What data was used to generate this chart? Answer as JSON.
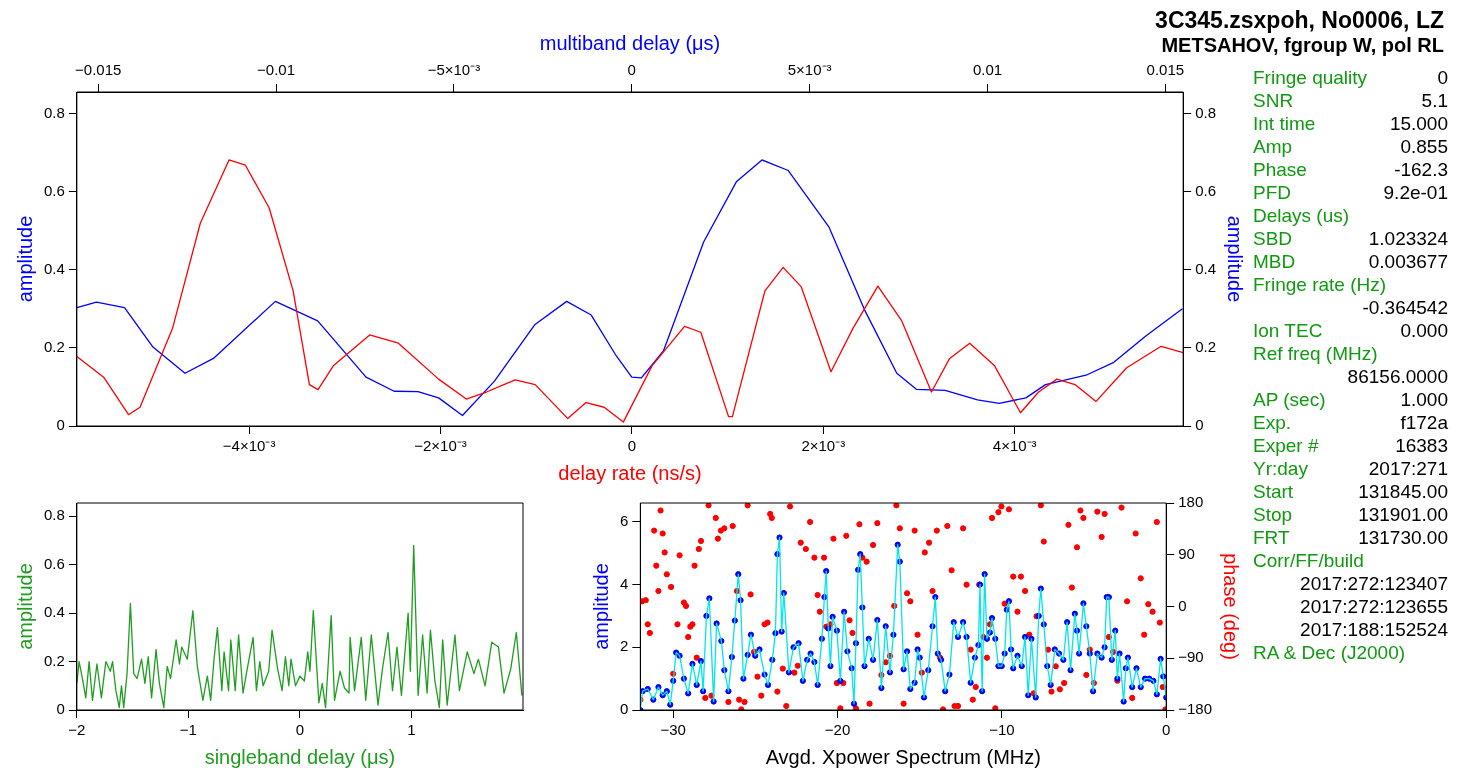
{
  "chart_data": [
    {
      "type": "line",
      "title": "3C345.zsxpoh, No0006, LZ",
      "subtitle": "METSAHOV, fgroup W, pol RL",
      "xlabel": "delay rate (ns/s)",
      "x2label": "multiband delay (μs)",
      "ylabel": "amplitude",
      "y2label": "amplitude",
      "marker": "none",
      "xlim": [
        -0.0058,
        0.00576
      ],
      "xticks": [
        {
          "value": -0.004,
          "label": "−4×10⁻³"
        },
        {
          "value": -0.002,
          "label": "−2×10⁻³"
        },
        0,
        {
          "value": 0.002,
          "label": "2×10⁻³"
        },
        {
          "value": 0.004,
          "label": "4×10⁻³"
        }
      ],
      "x2lim": [
        -0.0156,
        0.0155
      ],
      "x2ticks": [
        -0.015,
        -0.01,
        {
          "value": -0.005,
          "label": "−5×10⁻³"
        },
        0,
        {
          "value": 0.005,
          "label": "5×10⁻³"
        },
        0.01,
        0.015
      ],
      "ylim": [
        0,
        0.855
      ],
      "yticks": [
        0,
        0.2,
        0.4,
        0.6,
        0.8
      ],
      "y2lim": [
        0,
        0.855
      ],
      "y2ticks": [
        0,
        0.2,
        0.4,
        0.6,
        0.8
      ],
      "series": [
        {
          "color": "#ff0000",
          "x": [
            -0.0058,
            -0.00552,
            -0.00526,
            -0.00514,
            -0.0048,
            -0.00451,
            -0.00421,
            -0.00404,
            -0.00379,
            -0.00354,
            -0.00337,
            -0.00328,
            -0.00312,
            -0.00274,
            -0.00244,
            -0.00202,
            -0.00173,
            -0.00152,
            -0.00122,
            -0.00101,
            -0.00067,
            -0.00048,
            -0.00029,
            -9e-05,
            0.00021,
            0.00055,
            0.00072,
            0.00101,
            0.00105,
            0.00139,
            0.00158,
            0.00177,
            0.00208,
            0.00231,
            0.00257,
            0.00282,
            0.00313,
            0.00332,
            0.00353,
            0.00379,
            0.00406,
            0.00425,
            0.00444,
            0.00463,
            0.00485,
            0.00517,
            0.00553,
            0.00576
          ],
          "values": [
            0.178,
            0.125,
            0.029,
            0.048,
            0.25,
            0.519,
            0.681,
            0.668,
            0.558,
            0.346,
            0.106,
            0.093,
            0.154,
            0.233,
            0.212,
            0.12,
            0.069,
            0.087,
            0.118,
            0.106,
            0.019,
            0.06,
            0.048,
            0.01,
            0.154,
            0.255,
            0.24,
            0.024,
            0.024,
            0.346,
            0.406,
            0.356,
            0.139,
            0.25,
            0.358,
            0.269,
            0.087,
            0.173,
            0.212,
            0.154,
            0.034,
            0.087,
            0.12,
            0.106,
            0.063,
            0.149,
            0.204,
            0.188
          ]
        },
        {
          "color": "#0000ff",
          "axis": "x2",
          "x": [
            -0.0156,
            -0.01505,
            -0.01426,
            -0.01346,
            -0.01256,
            -0.01176,
            -0.01002,
            -0.00883,
            -0.00747,
            -0.00668,
            -0.00601,
            -0.00543,
            -0.00476,
            -0.00386,
            -0.00272,
            -0.00183,
            -0.00114,
            -0.00046,
            0,
            0.00027,
            0.00089,
            0.00202,
            0.00294,
            0.00366,
            0.0044,
            0.00554,
            0.00654,
            0.00745,
            0.008,
            0.00881,
            0.00972,
            0.01033,
            0.01108,
            0.01163,
            0.01277,
            0.01355,
            0.01446,
            0.01548
          ],
          "values": [
            0.303,
            0.317,
            0.303,
            0.202,
            0.135,
            0.173,
            0.319,
            0.269,
            0.125,
            0.089,
            0.088,
            0.072,
            0.027,
            0.115,
            0.26,
            0.319,
            0.284,
            0.183,
            0.125,
            0.123,
            0.192,
            0.471,
            0.625,
            0.681,
            0.654,
            0.51,
            0.298,
            0.135,
            0.094,
            0.091,
            0.067,
            0.058,
            0.072,
            0.106,
            0.13,
            0.163,
            0.231,
            0.3
          ]
        }
      ]
    },
    {
      "type": "line",
      "xlabel": "singleband delay (μs)",
      "ylabel": "amplitude",
      "marker": "none",
      "xlim": [
        -2,
        2
      ],
      "xticks": [
        -2,
        -1,
        0,
        1
      ],
      "ylim": [
        0,
        0.855
      ],
      "yticks": [
        0,
        0.2,
        0.4,
        0.6,
        0.8
      ],
      "series": [
        {
          "color": "#1e9e1e",
          "x": [
            -2,
            -1.98,
            -1.95,
            -1.92,
            -1.89,
            -1.86,
            -1.82,
            -1.78,
            -1.74,
            -1.7,
            -1.68,
            -1.65,
            -1.62,
            -1.6,
            -1.58,
            -1.55,
            -1.52,
            -1.49,
            -1.46,
            -1.42,
            -1.39,
            -1.36,
            -1.33,
            -1.29,
            -1.26,
            -1.22,
            -1.19,
            -1.16,
            -1.11,
            -1.08,
            -1.06,
            -1.01,
            -0.96,
            -0.92,
            -0.87,
            -0.83,
            -0.8,
            -0.77,
            -0.74,
            -0.7,
            -0.68,
            -0.64,
            -0.62,
            -0.58,
            -0.55,
            -0.51,
            -0.48,
            -0.42,
            -0.39,
            -0.36,
            -0.33,
            -0.28,
            -0.25,
            -0.2,
            -0.16,
            -0.13,
            -0.1,
            -0.08,
            -0.04,
            0,
            0.04,
            0.07,
            0.09,
            0.12,
            0.17,
            0.2,
            0.23,
            0.28,
            0.31,
            0.36,
            0.4,
            0.44,
            0.45,
            0.49,
            0.55,
            0.59,
            0.64,
            0.7,
            0.74,
            0.79,
            0.83,
            0.87,
            0.91,
            0.97,
            0.99,
            1.02,
            1.06,
            1.1,
            1.14,
            1.17,
            1.21,
            1.25,
            1.28,
            1.32,
            1.39,
            1.43,
            1.5,
            1.56,
            1.6,
            1.66,
            1.72,
            1.78,
            1.83,
            1.89,
            1.94,
            1.99
          ],
          "values": [
            0.11,
            0.2,
            0.13,
            0.05,
            0.2,
            0.04,
            0.19,
            0.05,
            0.2,
            0.16,
            0.2,
            0.08,
            0.01,
            0.1,
            0.01,
            0.15,
            0.44,
            0.15,
            0.13,
            0.21,
            0.11,
            0.22,
            0.05,
            0.25,
            0.11,
            0.01,
            0.18,
            0.13,
            0.29,
            0.19,
            0.26,
            0.21,
            0.41,
            0.18,
            0.04,
            0.14,
            0.04,
            0.21,
            0.34,
            0.08,
            0.24,
            0.08,
            0.29,
            0.08,
            0.31,
            0.07,
            0.15,
            0.3,
            0.08,
            0.2,
            0.1,
            0.16,
            0.33,
            0.17,
            0.08,
            0.22,
            0.1,
            0.21,
            0.1,
            0.14,
            0.12,
            0.24,
            0.16,
            0.41,
            0.03,
            0.11,
            0.01,
            0.39,
            0.04,
            0.16,
            0.09,
            0.07,
            0.3,
            0.08,
            0.3,
            0.04,
            0.31,
            0.02,
            0.17,
            0.32,
            0.08,
            0.26,
            0.06,
            0.4,
            0.16,
            0.68,
            0.06,
            0.31,
            0.07,
            0.33,
            0.12,
            0.01,
            0.29,
            0.02,
            0.31,
            0.08,
            0.24,
            0.15,
            0.21,
            0.1,
            0.28,
            0.26,
            0.07,
            0.17,
            0.32,
            0.06
          ]
        }
      ]
    },
    {
      "type": "line",
      "xlabel": "Avgd. Xpower Spectrum (MHz)",
      "ylabel": "amplitude",
      "y2label": "phase (deg)",
      "xlim": [
        -32,
        0
      ],
      "xticks": [
        -30,
        -20,
        -10,
        0
      ],
      "ylim": [
        0,
        6.6
      ],
      "yticks": [
        0,
        2,
        4,
        6
      ],
      "y2lim": [
        -180,
        180
      ],
      "y2ticks": [
        -180,
        -90,
        0,
        90,
        180
      ],
      "series": [
        {
          "color": "#00e5ee",
          "marker": "none",
          "x": [
            -32,
            -31.86,
            -31.55,
            -31.21,
            -30.9,
            -30.64,
            -30.39,
            -30.18,
            -30,
            -29.82,
            -29.61,
            -29.35,
            -29.09,
            -28.83,
            -28.57,
            -28.31,
            -28.18,
            -27.98,
            -27.8,
            -27.54,
            -27.36,
            -27.07,
            -26.89,
            -26.64,
            -26.43,
            -26.25,
            -26.04,
            -25.9,
            -25.73,
            -25.47,
            -25.27,
            -25.01,
            -24.75,
            -24.44,
            -24.23,
            -23.97,
            -23.78,
            -23.66,
            -23.53,
            -23.4,
            -23.27,
            -22.96,
            -22.68,
            -22.37,
            -22.11,
            -21.85,
            -21.64,
            -21.41,
            -21.21,
            -20.95,
            -20.8,
            -20.69,
            -20.56,
            -20.43,
            -20.3,
            -20.04,
            -19.83,
            -19.6,
            -19.4,
            -19.14,
            -19,
            -18.88,
            -18.75,
            -18.62,
            -18.49,
            -18.36,
            -18.1,
            -17.84,
            -17.58,
            -17.33,
            -17.07,
            -16.81,
            -16.6,
            -16.34,
            -16.21,
            -15.98,
            -15.77,
            -15.57,
            -15.31,
            -15.13,
            -15,
            -14.74,
            -14.48,
            -14.22,
            -14.05,
            -13.9,
            -13.7,
            -13.45,
            -13.19,
            -12.93,
            -12.67,
            -12.36,
            -12.15,
            -11.9,
            -11.64,
            -11.43,
            -11.33,
            -11.2,
            -11.05,
            -10.91,
            -10.73,
            -10.6,
            -10.4,
            -10.21,
            -10.01,
            -9.83,
            -9.7,
            -9.57,
            -9.44,
            -9.31,
            -9.05,
            -8.79,
            -8.59,
            -8.4,
            -8.2,
            -7.94,
            -7.76,
            -7.63,
            -7.45,
            -7.24,
            -7.03,
            -6.78,
            -6.52,
            -6.26,
            -6.03,
            -5.82,
            -5.56,
            -5.43,
            -5.3,
            -5.04,
            -4.86,
            -4.65,
            -4.45,
            -4.19,
            -3.93,
            -3.75,
            -3.62,
            -3.49,
            -3.31,
            -3.1,
            -2.97,
            -2.84,
            -2.59,
            -2.46,
            -2.33,
            -2.07,
            -1.81,
            -1.55,
            -1.29,
            -1.03,
            -0.78,
            -0.57,
            -0.34,
            -0.18,
            0
          ],
          "values": [
            0,
            0.6,
            0.67,
            0.33,
            0.73,
            0.47,
            0.6,
            0.17,
            0.93,
            1.83,
            1.73,
            1,
            0.53,
            1.47,
            0.8,
            1.56,
            0.6,
            3,
            3.56,
            0.27,
            2.76,
            2.2,
            1.27,
            0.6,
            1.69,
            2.85,
            4.33,
            3.5,
            1,
            1.76,
            2.4,
            1.73,
            1.93,
            1.13,
            0.8,
            1.6,
            2.45,
            4.97,
            5.5,
            2.5,
            3.73,
            1.2,
            2,
            2.13,
            0.93,
            1.6,
            1.8,
            1.53,
            0.8,
            2.27,
            3.6,
            4.43,
            2.6,
            1.4,
            2.97,
            2.53,
            0.93,
            3.13,
            1.87,
            1.33,
            0.2,
            2.13,
            4.47,
            4.97,
            3.27,
            1.4,
            2.27,
            1.6,
            2.87,
            0.7,
            2.67,
            1.2,
            2.4,
            5.27,
            4.73,
            1.3,
            1.87,
            0.67,
            0.87,
            1.93,
            1.67,
            0.4,
            1.27,
            2.67,
            3.6,
            1.8,
            1.6,
            0.6,
            1.13,
            2.8,
            2.33,
            2.8,
            2.33,
            0.87,
            1.67,
            2.07,
            4,
            0.6,
            4.33,
            2.27,
            2.47,
            2.93,
            2.27,
            1.4,
            1.4,
            1.8,
            3.2,
            3.47,
            1.93,
            1.33,
            1.73,
            1.4,
            2.33,
            0.47,
            2.27,
            0.4,
            3,
            3.87,
            2.73,
            1.4,
            0.8,
            1.93,
            1.8,
            1.6,
            2.8,
            1.27,
            3.07,
            2.53,
            1.8,
            3.4,
            2.67,
            1.8,
            0.6,
            1.8,
            1.67,
            2,
            3.6,
            3.6,
            1.6,
            2.53,
            1,
            1.8,
            0.27,
            1.33,
            1.67,
            0.73,
            1.33,
            0.73,
            1,
            1,
            0.93,
            0.5,
            1.63,
            1.07,
            0.4
          ]
        },
        {
          "type": "scatter",
          "color": "#0000ff",
          "marker": "circle",
          "x": [
            -32,
            -31.86,
            -31.55,
            -31.21,
            -30.9,
            -30.64,
            -30.39,
            -30.18,
            -30,
            -29.82,
            -29.61,
            -29.35,
            -29.09,
            -28.83,
            -28.57,
            -28.31,
            -28.18,
            -27.98,
            -27.8,
            -27.54,
            -27.36,
            -27.07,
            -26.89,
            -26.64,
            -26.43,
            -26.25,
            -26.04,
            -25.9,
            -25.73,
            -25.47,
            -25.27,
            -25.01,
            -24.75,
            -24.44,
            -24.23,
            -23.97,
            -23.78,
            -23.66,
            -23.53,
            -23.4,
            -23.27,
            -22.96,
            -22.68,
            -22.37,
            -22.11,
            -21.85,
            -21.64,
            -21.41,
            -21.21,
            -20.95,
            -20.8,
            -20.69,
            -20.56,
            -20.43,
            -20.3,
            -20.04,
            -19.83,
            -19.6,
            -19.4,
            -19.14,
            -19,
            -18.88,
            -18.75,
            -18.62,
            -18.49,
            -18.36,
            -18.1,
            -17.84,
            -17.58,
            -17.33,
            -17.07,
            -16.81,
            -16.6,
            -16.34,
            -16.21,
            -15.98,
            -15.77,
            -15.57,
            -15.31,
            -15.13,
            -15,
            -14.74,
            -14.48,
            -14.22,
            -14.05,
            -13.9,
            -13.7,
            -13.45,
            -13.19,
            -12.93,
            -12.67,
            -12.36,
            -12.15,
            -11.9,
            -11.64,
            -11.43,
            -11.33,
            -11.2,
            -11.05,
            -10.91,
            -10.73,
            -10.6,
            -10.4,
            -10.21,
            -10.01,
            -9.83,
            -9.7,
            -9.57,
            -9.44,
            -9.31,
            -9.05,
            -8.79,
            -8.59,
            -8.4,
            -8.2,
            -7.94,
            -7.76,
            -7.63,
            -7.45,
            -7.24,
            -7.03,
            -6.78,
            -6.52,
            -6.26,
            -6.03,
            -5.82,
            -5.56,
            -5.43,
            -5.3,
            -5.04,
            -4.86,
            -4.65,
            -4.45,
            -4.19,
            -3.93,
            -3.75,
            -3.62,
            -3.49,
            -3.31,
            -3.1,
            -2.97,
            -2.84,
            -2.59,
            -2.46,
            -2.33,
            -2.07,
            -1.81,
            -1.55,
            -1.29,
            -1.03,
            -0.78,
            -0.57,
            -0.34,
            -0.18,
            0
          ],
          "values": [
            0,
            0.6,
            0.67,
            0.33,
            0.73,
            0.47,
            0.6,
            0.17,
            0.93,
            1.83,
            1.73,
            1,
            0.53,
            1.47,
            0.8,
            1.56,
            0.6,
            3,
            3.56,
            0.27,
            2.76,
            2.2,
            1.27,
            0.6,
            1.69,
            2.85,
            4.33,
            3.5,
            1,
            1.76,
            2.4,
            1.73,
            1.93,
            1.13,
            0.8,
            1.6,
            2.45,
            4.97,
            5.5,
            2.5,
            3.73,
            1.2,
            2,
            2.13,
            0.93,
            1.6,
            1.8,
            1.53,
            0.8,
            2.27,
            3.6,
            4.43,
            2.6,
            1.4,
            2.97,
            2.53,
            0.93,
            3.13,
            1.87,
            1.33,
            0.2,
            2.13,
            4.47,
            4.97,
            3.27,
            1.4,
            2.27,
            1.6,
            2.87,
            0.7,
            2.67,
            1.2,
            2.4,
            5.27,
            4.73,
            1.3,
            1.87,
            0.67,
            0.87,
            1.93,
            1.67,
            0.4,
            1.27,
            2.67,
            3.6,
            1.8,
            1.6,
            0.6,
            1.13,
            2.8,
            2.33,
            2.8,
            2.33,
            0.87,
            1.67,
            2.07,
            4,
            0.6,
            4.33,
            2.27,
            2.47,
            2.93,
            2.27,
            1.4,
            1.4,
            1.8,
            3.2,
            3.47,
            1.93,
            1.33,
            1.73,
            1.4,
            2.33,
            0.47,
            2.27,
            0.4,
            3,
            3.87,
            2.73,
            1.4,
            0.8,
            1.93,
            1.8,
            1.6,
            2.8,
            1.27,
            3.07,
            2.53,
            1.8,
            3.4,
            2.67,
            1.8,
            0.6,
            1.8,
            1.67,
            2,
            3.6,
            3.6,
            1.6,
            2.53,
            1,
            1.8,
            0.27,
            1.33,
            1.67,
            0.73,
            1.33,
            0.73,
            1,
            1,
            0.93,
            0.5,
            1.63,
            1.07,
            0.4
          ]
        },
        {
          "type": "scatter",
          "color": "#ff0000",
          "axis": "y2",
          "marker": "circle",
          "x": [
            -32,
            -31.9,
            -31.67,
            -31.55,
            -31.42,
            -31.16,
            -31.03,
            -30.9,
            -30.77,
            -30.64,
            -30.52,
            -30.39,
            -30.13,
            -30,
            -29.74,
            -29.61,
            -29.35,
            -29.22,
            -29.09,
            -28.96,
            -28.83,
            -28.7,
            -28.57,
            -28.44,
            -28.31,
            -28.05,
            -27.85,
            -27.67,
            -27.41,
            -27.28,
            -27.1,
            -26.89,
            -26.64,
            -26.38,
            -26.12,
            -25.99,
            -25.86,
            -25.66,
            -25.47,
            -25.29,
            -25.08,
            -24.87,
            -24.64,
            -24.44,
            -24.26,
            -24.1,
            -24,
            -23.66,
            -23.33,
            -23.12,
            -22.89,
            -22.63,
            -22.42,
            -22.24,
            -21.93,
            -21.67,
            -21.41,
            -21.21,
            -21.08,
            -20.82,
            -20.69,
            -20.43,
            -20.25,
            -20.04,
            -19.83,
            -19.65,
            -19.47,
            -19.27,
            -19.09,
            -18.88,
            -18.67,
            -18.49,
            -18.23,
            -18.05,
            -17.84,
            -17.58,
            -17.33,
            -17.07,
            -16.81,
            -16.55,
            -16.42,
            -16.21,
            -15.98,
            -15.77,
            -15.57,
            -15.31,
            -15.13,
            -14.87,
            -14.69,
            -14.43,
            -14.22,
            -13.96,
            -13.76,
            -13.58,
            -13.32,
            -13.06,
            -12.88,
            -12.67,
            -12.36,
            -12.15,
            -11.9,
            -11.77,
            -11.59,
            -11.38,
            -11.12,
            -10.91,
            -10.73,
            -10.6,
            -10.4,
            -10.21,
            -10.03,
            -9.83,
            -9.57,
            -9.31,
            -9.05,
            -8.84,
            -8.59,
            -8.33,
            -8.07,
            -7.89,
            -7.63,
            -7.45,
            -7.19,
            -6.98,
            -6.72,
            -6.47,
            -6.21,
            -5.95,
            -5.74,
            -5.43,
            -5.22,
            -5.04,
            -4.86,
            -4.65,
            -4.4,
            -4.19,
            -3.93,
            -3.75,
            -3.49,
            -3.23,
            -2.97,
            -2.72,
            -2.38,
            -2.07,
            -1.86,
            -1.55,
            -1.34,
            -1.09,
            -0.83,
            -0.57,
            -0.39,
            -0.21,
            -0.05
          ],
          "values": [
            -162,
            9,
            11,
            -31,
            -46,
            132,
            71,
            27,
            167,
            127,
            94,
            56,
            34,
            -117,
            -31,
            89,
            7,
            1,
            -53,
            -35,
            -31,
            71,
            -89,
            100,
            114,
            -159,
            176,
            -155,
            154,
            118,
            132,
            136,
            -166,
            140,
            27,
            -162,
            -179,
            -166,
            176,
            21,
            -79,
            -122,
            -155,
            -31,
            -28,
            161,
            154,
            -148,
            -108,
            -173,
            174,
            -115,
            -103,
            111,
            100,
            147,
            85,
            20,
            -9,
            85,
            -35,
            -31,
            118,
            -133,
            -177,
            -133,
            123,
            -24,
            -46,
            -177,
            143,
            85,
            78,
            -169,
            107,
            145,
            -119,
            -97,
            -86,
            1,
            176,
            136,
            -169,
            23,
            9,
            132,
            -49,
            -115,
            94,
            111,
            27,
            132,
            -89,
            -179,
            140,
            63,
            -173,
            -173,
            136,
            38,
            -75,
            -162,
            -140,
            38,
            -53,
            -89,
            -31,
            154,
            -177,
            164,
            174,
            5,
            169,
            52,
            -9,
            52,
            27,
            -49,
            -151,
            -17,
            176,
            113,
            -75,
            -148,
            -104,
            -144,
            -133,
            142,
            33,
            103,
            167,
            154,
            -119,
            -75,
            -133,
            165,
            121,
            161,
            -53,
            -79,
            -129,
            172,
            9,
            -159,
            127,
            49,
            -49,
            4,
            -9,
            147,
            -28,
            -140,
            -179
          ]
        }
      ]
    },
    {
      "type": "other",
      "annotations": [
        "Fringe quality",
        "0",
        "SNR",
        "5.1",
        "Int time",
        "15.000",
        "Amp",
        "0.855",
        "Phase",
        "-162.3",
        "PFD",
        "9.2e-01",
        "Delays (us)",
        "SBD",
        "1.023324",
        "MBD",
        "0.003677",
        "Fringe rate (Hz)",
        "-0.364542",
        "Ion TEC",
        "0.000",
        "Ref freq (MHz)",
        "86156.0000",
        "AP (sec)",
        "1.000",
        "Exp.",
        "f172a",
        "Exper #",
        "16383",
        "Yr:day",
        "2017:271",
        "Start",
        "131845.00",
        "Stop",
        "131901.00",
        "FRT",
        "131730.00",
        "Corr/FF/build",
        "2017:272:123407",
        "2017:272:123655",
        "2017:188:152524",
        "RA & Dec (J2000)"
      ],
      "colors": [
        "#119911",
        "#000000",
        "#119911",
        "#000000",
        "#119911",
        "#000000",
        "#119911",
        "#000000",
        "#119911",
        "#000000",
        "#119911",
        "#000000",
        "#119911",
        "#119911",
        "#000000",
        "#119911",
        "#000000",
        "#119911",
        "#000000",
        "#119911",
        "#000000",
        "#119911",
        "#000000",
        "#119911",
        "#000000",
        "#119911",
        "#000000",
        "#119911",
        "#000000",
        "#119911",
        "#000000",
        "#119911",
        "#000000",
        "#119911",
        "#000000",
        "#119911",
        "#000000",
        "#119911",
        "#000000",
        "#000000",
        "#000000",
        "#119911"
      ]
    }
  ]
}
